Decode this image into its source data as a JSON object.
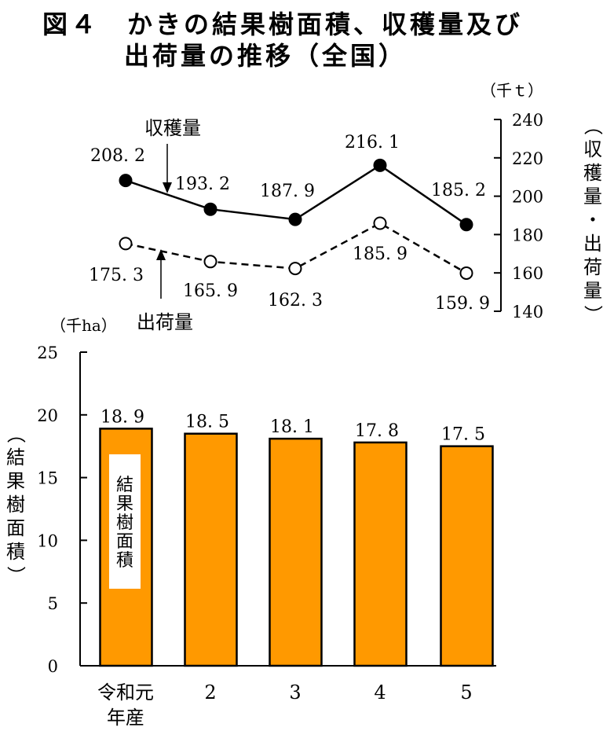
{
  "title": {
    "line1": "図４　かきの結果樹面積、収穫量及び",
    "line2": "出荷量の推移（全国）"
  },
  "chart_data": [
    {
      "type": "line",
      "unit": "（千ｔ）",
      "ylabel": "（収穫量・出荷量）",
      "ylim": [
        140,
        240
      ],
      "yticks": [
        140,
        160,
        180,
        200,
        220,
        240
      ],
      "categories": [
        "令和元年産",
        "2",
        "3",
        "4",
        "5"
      ],
      "series": [
        {
          "name": "収穫量",
          "values": [
            208.2,
            193.2,
            187.9,
            216.1,
            185.2
          ],
          "labels": [
            "208. 2",
            "193. 2",
            "187. 9",
            "216. 1",
            "185. 2"
          ],
          "marker": "filled",
          "line": "solid"
        },
        {
          "name": "出荷量",
          "values": [
            175.3,
            165.9,
            162.3,
            185.9,
            159.9
          ],
          "labels": [
            "175. 3",
            "165. 9",
            "162. 3",
            "185. 9",
            "159. 9"
          ],
          "marker": "open",
          "line": "dashed"
        }
      ]
    },
    {
      "type": "bar",
      "unit": "（千ha）",
      "ylabel": "（結果樹面積）",
      "ylim": [
        0,
        25
      ],
      "yticks": [
        0,
        5,
        10,
        15,
        20,
        25
      ],
      "categories": [
        "令和元年産",
        "2",
        "3",
        "4",
        "5"
      ],
      "category_lines": [
        [
          "令和元",
          "年産"
        ],
        [
          "2"
        ],
        [
          "3"
        ],
        [
          "4"
        ],
        [
          "5"
        ]
      ],
      "series": [
        {
          "name": "結果樹面積",
          "values": [
            18.9,
            18.5,
            18.1,
            17.8,
            17.5
          ],
          "labels": [
            "18. 9",
            "18. 5",
            "18. 1",
            "17. 8",
            "17. 5"
          ]
        }
      ],
      "bar_color": "#ff9900"
    }
  ]
}
